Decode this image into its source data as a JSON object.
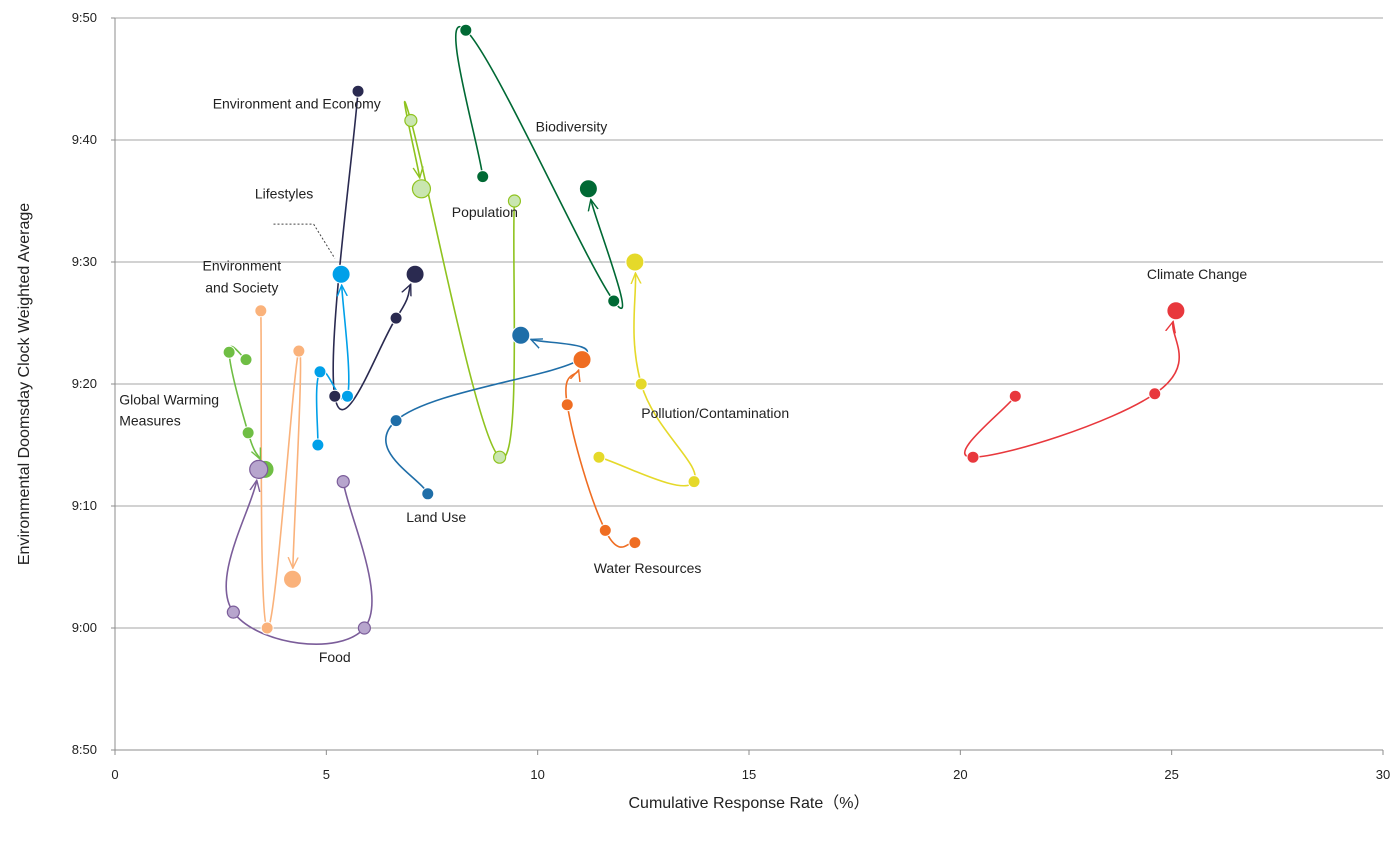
{
  "chart_data": {
    "type": "scatter",
    "xlabel": "Cumulative Response Rate（%）",
    "ylabel": "Environmental Doomsday Clock Weighted Average",
    "xlim": [
      0,
      30
    ],
    "ylim_minutes": [
      530,
      590
    ],
    "x_ticks": [
      0,
      5,
      10,
      15,
      20,
      25,
      30
    ],
    "y_ticks": [
      {
        "minutes": 530,
        "label": "8:50"
      },
      {
        "minutes": 540,
        "label": "9:00"
      },
      {
        "minutes": 550,
        "label": "9:10"
      },
      {
        "minutes": 560,
        "label": "9:20"
      },
      {
        "minutes": 570,
        "label": "9:30"
      },
      {
        "minutes": 580,
        "label": "9:40"
      },
      {
        "minutes": 590,
        "label": "9:50"
      }
    ],
    "grid": "horizontal",
    "series": [
      {
        "name": "Climate Change",
        "color": "#e8383d",
        "points": [
          [
            21.3,
            559
          ],
          [
            20.3,
            554
          ],
          [
            24.6,
            559.2
          ],
          [
            25.1,
            566
          ]
        ]
      },
      {
        "name": "Biodiversity",
        "color": "#006934",
        "points": [
          [
            8.7,
            577
          ],
          [
            8.3,
            589
          ],
          [
            11.8,
            566.8
          ],
          [
            11.2,
            576
          ]
        ]
      },
      {
        "name": "Population",
        "color": "#8fc31f",
        "hollow": true,
        "points": [
          [
            9.45,
            575
          ],
          [
            9.1,
            554
          ],
          [
            7.0,
            581.6
          ],
          [
            7.25,
            576
          ]
        ]
      },
      {
        "name": "Environment and Economy",
        "color": "#2a2a50",
        "points": [
          [
            5.75,
            584
          ],
          [
            5.2,
            559
          ],
          [
            6.65,
            565.4
          ],
          [
            7.1,
            569
          ]
        ]
      },
      {
        "name": "Lifestyles",
        "color": "#00a0e9",
        "points": [
          [
            4.8,
            555
          ],
          [
            4.85,
            561
          ],
          [
            5.5,
            559
          ],
          [
            5.35,
            569
          ]
        ]
      },
      {
        "name": "Environment and Society",
        "color": "#fab27b",
        "points": [
          [
            3.45,
            566
          ],
          [
            3.6,
            540
          ],
          [
            4.35,
            562.7
          ],
          [
            4.2,
            544
          ]
        ]
      },
      {
        "name": "Global Warming Measures",
        "color": "#6fbe44",
        "points": [
          [
            3.1,
            562
          ],
          [
            2.7,
            562.6
          ],
          [
            3.15,
            556
          ],
          [
            3.55,
            553
          ]
        ]
      },
      {
        "name": "Food",
        "color": "#7b5d9a",
        "hollow": true,
        "points": [
          [
            5.4,
            552
          ],
          [
            5.9,
            540
          ],
          [
            2.8,
            541.3
          ],
          [
            3.4,
            553
          ]
        ]
      },
      {
        "name": "Land Use",
        "color": "#1f6ea8",
        "points": [
          [
            7.4,
            551
          ],
          [
            6.65,
            557
          ],
          [
            11.0,
            562
          ],
          [
            9.6,
            564
          ]
        ]
      },
      {
        "name": "Water Resources",
        "color": "#ef6d22",
        "points": [
          [
            12.3,
            547
          ],
          [
            11.6,
            548
          ],
          [
            10.7,
            558.3
          ],
          [
            11.05,
            562
          ]
        ]
      },
      {
        "name": "Pollution/Contamination",
        "color": "#e5d92a",
        "points": [
          [
            11.45,
            554
          ],
          [
            13.7,
            552
          ],
          [
            12.45,
            560
          ],
          [
            12.3,
            570
          ]
        ]
      }
    ],
    "labels": [
      {
        "text": "Climate Change",
        "x": 25.6,
        "y": 568.6,
        "anchor": "middle"
      },
      {
        "text": "Biodiversity",
        "x": 10.8,
        "y": 580.7,
        "anchor": "middle"
      },
      {
        "text": "Population",
        "x": 8.75,
        "y": 573.7,
        "anchor": "middle"
      },
      {
        "text": "Environment and Economy",
        "x": 4.3,
        "y": 582.6,
        "anchor": "middle"
      },
      {
        "text": "Lifestyles",
        "x": 4.0,
        "y": 575.2,
        "anchor": "middle"
      },
      {
        "text": "Environment",
        "x": 3.0,
        "y": 569.3,
        "anchor": "middle"
      },
      {
        "text": "and Society",
        "x": 3.0,
        "y": 567.5,
        "anchor": "middle"
      },
      {
        "text": "Global Warming",
        "x": 0.1,
        "y": 558.3,
        "anchor": "start"
      },
      {
        "text": "Measures",
        "x": 0.1,
        "y": 556.6,
        "anchor": "start"
      },
      {
        "text": "Food",
        "x": 5.2,
        "y": 537.2,
        "anchor": "middle"
      },
      {
        "text": "Land Use",
        "x": 7.6,
        "y": 548.7,
        "anchor": "middle"
      },
      {
        "text": "Water Resources",
        "x": 12.6,
        "y": 544.5,
        "anchor": "middle"
      },
      {
        "text": "Pollution/Contamination",
        "x": 14.2,
        "y": 557.2,
        "anchor": "middle"
      }
    ]
  }
}
